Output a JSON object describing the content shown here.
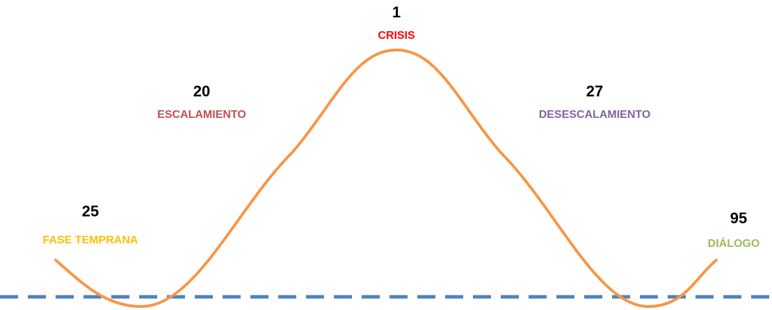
{
  "phases": [
    {
      "count": "25",
      "label": "FASE TEMPRANA",
      "color": "#ffc000"
    },
    {
      "count": "20",
      "label": "ESCALAMIENTO",
      "color": "#c0504d"
    },
    {
      "count": "1",
      "label": "CRISIS",
      "color": "#ff0000"
    },
    {
      "count": "27",
      "label": "DESESCALAMIENTO",
      "color": "#8064a2"
    },
    {
      "count": "95",
      "label": "DIÁLOGO",
      "color": "#9bbb59"
    }
  ]
}
